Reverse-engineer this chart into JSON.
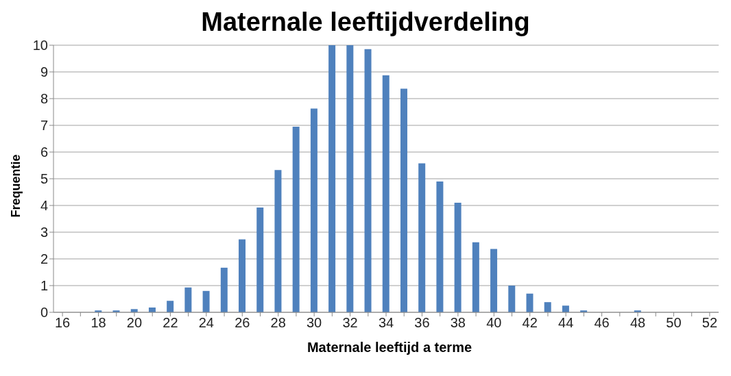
{
  "chart_data": {
    "type": "bar",
    "title": "Maternale leeftijdverdeling",
    "xlabel": "Maternale leeftijd a terme",
    "ylabel": "Frequentie",
    "categories": [
      "16",
      null,
      "18",
      null,
      "20",
      null,
      "22",
      null,
      "24",
      null,
      "26",
      null,
      "28",
      null,
      "30",
      null,
      "32",
      null,
      "34",
      null,
      "36",
      null,
      "38",
      null,
      "40",
      null,
      "42",
      null,
      "44",
      null,
      "46",
      null,
      "48",
      null,
      "50",
      null,
      "52"
    ],
    "values": [
      0,
      0,
      0.07,
      0.07,
      0.12,
      0.18,
      0.43,
      0.93,
      0.8,
      1.67,
      2.73,
      3.92,
      5.33,
      6.95,
      7.63,
      10,
      10,
      9.85,
      8.87,
      8.37,
      5.58,
      4.9,
      4.1,
      2.62,
      2.37,
      1.0,
      0.7,
      0.38,
      0.25,
      0.07,
      0,
      0,
      0.07,
      0,
      0,
      0,
      0
    ],
    "color": "#4f81bd",
    "ylim": [
      0,
      10
    ],
    "yticks": [
      0,
      1,
      2,
      3,
      4,
      5,
      6,
      7,
      8,
      9,
      10
    ],
    "grid": "y"
  }
}
